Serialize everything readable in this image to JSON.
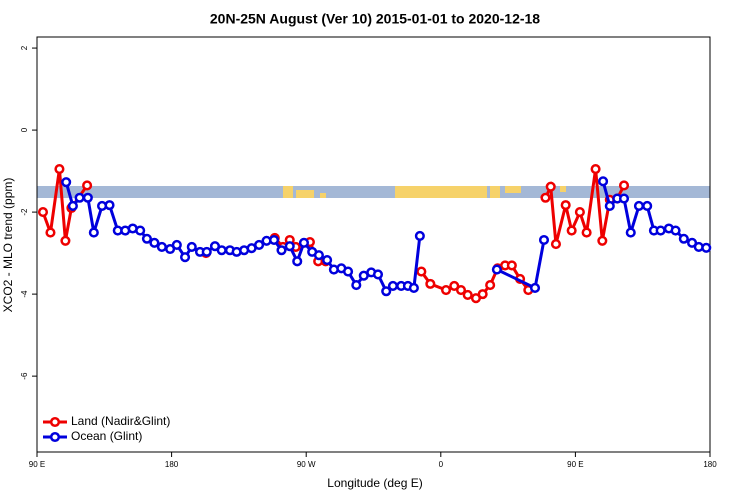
{
  "chart_data": {
    "type": "line",
    "title": "20N-25N August (Ver 10)   2015-01-01 to 2020-12-18",
    "x_label": "Longitude (deg E)",
    "y_label": "XCO2 - MLO trend (ppm)",
    "xlim": [
      90,
      540
    ],
    "ylim": [
      -7.85,
      2.27
    ],
    "xticks": [
      {
        "value": 90,
        "label": "90 E"
      },
      {
        "value": 180,
        "label": "180"
      },
      {
        "value": 270,
        "label": "90 W"
      },
      {
        "value": 360,
        "label": "0"
      },
      {
        "value": 450,
        "label": "90 E"
      },
      {
        "value": 540,
        "label": "180"
      }
    ],
    "yticks": [
      -6,
      -4,
      -2,
      0,
      2
    ],
    "legend": "bottom left",
    "series": [
      {
        "name": "Land (Nadir&Glint)",
        "color": "#ee0000",
        "x": [
          94,
          99,
          105,
          109,
          113,
          123.5,
          null,
          203,
          null,
          249,
          254.5,
          259,
          263,
          272.5,
          278,
          283,
          null,
          347,
          353,
          363.5,
          369,
          373.5,
          378,
          383.5,
          388,
          393,
          398,
          403,
          407.5,
          413,
          418.5,
          null,
          430,
          433.5,
          437,
          443.5,
          447.5,
          453,
          457.5,
          463.5,
          468,
          473,
          478,
          482.5
        ],
        "values": [
          -2.0,
          -2.5,
          -0.95,
          -2.7,
          -1.9,
          -1.35,
          null,
          -3.0,
          null,
          -2.63,
          -2.85,
          -2.68,
          -2.85,
          -2.73,
          -3.2,
          -3.2,
          null,
          -3.45,
          -3.75,
          -3.9,
          -3.8,
          -3.9,
          -4.02,
          -4.1,
          -4.0,
          -3.78,
          -3.37,
          -3.3,
          -3.3,
          -3.63,
          -3.9,
          null,
          -1.65,
          -1.38,
          -2.78,
          -1.83,
          -2.45,
          -2.0,
          -2.5,
          -0.95,
          -2.7,
          -1.7,
          -1.67,
          -1.35
        ]
      },
      {
        "name": "Ocean (Glint)",
        "color": "#0000dd",
        "x": [
          109.5,
          114,
          118.5,
          124,
          128,
          133.5,
          138.5,
          144,
          149,
          154,
          159,
          163.5,
          168.5,
          173.5,
          179,
          183.5,
          189,
          193.5,
          199,
          203.5,
          209,
          213.5,
          219,
          223.5,
          228.5,
          233.5,
          238.5,
          243.5,
          248.5,
          253.5,
          259,
          264,
          268.5,
          274,
          278.5,
          284,
          288.5,
          293.5,
          298,
          303.5,
          308.5,
          313.5,
          318,
          323.5,
          328,
          333.5,
          338,
          342,
          346,
          null,
          397.5,
          423,
          429,
          null,
          468.5,
          473,
          478,
          482.5,
          487,
          492.5,
          498,
          502.5,
          507,
          512.5,
          517,
          522.5,
          528,
          532.5,
          537.5
        ],
        "values": [
          -1.27,
          -1.85,
          -1.65,
          -1.65,
          -2.5,
          -1.85,
          -1.83,
          -2.45,
          -2.45,
          -2.4,
          -2.45,
          -2.65,
          -2.75,
          -2.85,
          -2.9,
          -2.8,
          -3.1,
          -2.85,
          -2.97,
          -2.97,
          -2.83,
          -2.93,
          -2.93,
          -2.97,
          -2.93,
          -2.88,
          -2.8,
          -2.7,
          -2.68,
          -2.93,
          -2.83,
          -3.2,
          -2.75,
          -2.97,
          -3.05,
          -3.17,
          -3.4,
          -3.37,
          -3.45,
          -3.78,
          -3.55,
          -3.47,
          -3.52,
          -3.93,
          -3.8,
          -3.8,
          -3.8,
          -3.85,
          -2.58,
          null,
          -3.4,
          -3.85,
          -2.68,
          null,
          -1.25,
          -1.85,
          -1.67,
          -1.67,
          -2.5,
          -1.85,
          -1.85,
          -2.45,
          -2.45,
          -2.4,
          -2.45,
          -2.65,
          -2.75,
          -2.85,
          -2.87
        ]
      }
    ]
  }
}
